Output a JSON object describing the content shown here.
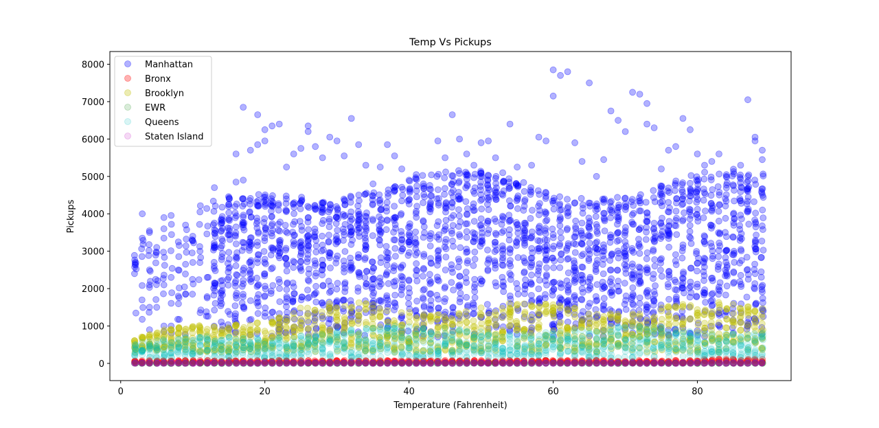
{
  "chart_data": {
    "type": "scatter",
    "title": "Temp Vs Pickups",
    "xlabel": "Temperature (Fahrenheit)",
    "ylabel": "Pickups",
    "xlim": [
      -1.5,
      93
    ],
    "ylim": [
      -460,
      8340
    ],
    "xticks": [
      0,
      20,
      40,
      60,
      80
    ],
    "yticks": [
      0,
      1000,
      2000,
      3000,
      4000,
      5000,
      6000,
      7000,
      8000
    ],
    "grid": false,
    "legend_position": "top-left",
    "x_range": [
      2,
      89
    ],
    "series": [
      {
        "name": "Manhattan",
        "color": "#0000ff",
        "alpha": 0.3,
        "points": [
          [
            2,
            2700
          ],
          [
            2,
            2650
          ],
          [
            3,
            4000
          ],
          [
            3,
            3350
          ],
          [
            4,
            3500
          ],
          [
            4,
            2500
          ],
          [
            4,
            2100
          ],
          [
            4,
            1500
          ],
          [
            4,
            900
          ],
          [
            5,
            1500
          ],
          [
            5,
            3100
          ],
          [
            6,
            3900
          ],
          [
            6,
            3600
          ],
          [
            6,
            2100
          ],
          [
            6,
            1000
          ],
          [
            7,
            2300
          ],
          [
            7,
            1000
          ],
          [
            8,
            3250
          ],
          [
            8,
            2500
          ],
          [
            8,
            1800
          ],
          [
            9,
            3700
          ],
          [
            9,
            2650
          ],
          [
            9,
            1850
          ],
          [
            10,
            3400
          ],
          [
            10,
            2700
          ],
          [
            11,
            4050
          ],
          [
            11,
            3000
          ],
          [
            12,
            2300
          ],
          [
            12,
            1750
          ],
          [
            13,
            4700
          ],
          [
            13,
            3100
          ],
          [
            13,
            2150
          ],
          [
            14,
            3550
          ],
          [
            14,
            1600
          ],
          [
            15,
            4250
          ],
          [
            15,
            2300
          ],
          [
            16,
            5600
          ],
          [
            16,
            3650
          ],
          [
            16,
            4850
          ],
          [
            17,
            6850
          ],
          [
            17,
            4900
          ],
          [
            18,
            5700
          ],
          [
            19,
            6650
          ],
          [
            19,
            5850
          ],
          [
            20,
            6250
          ],
          [
            20,
            5950
          ],
          [
            21,
            6350
          ],
          [
            22,
            6400
          ],
          [
            23,
            5250
          ],
          [
            24,
            5600
          ],
          [
            25,
            5750
          ],
          [
            26,
            6350
          ],
          [
            26,
            6200
          ],
          [
            27,
            5800
          ],
          [
            28,
            5500
          ],
          [
            29,
            6050
          ],
          [
            30,
            5950
          ],
          [
            31,
            5550
          ],
          [
            32,
            6550
          ],
          [
            33,
            5850
          ],
          [
            34,
            5300
          ],
          [
            35,
            4800
          ],
          [
            36,
            5250
          ],
          [
            37,
            5850
          ],
          [
            38,
            5550
          ],
          [
            39,
            5200
          ],
          [
            40,
            4900
          ],
          [
            41,
            5050
          ],
          [
            42,
            4800
          ],
          [
            43,
            4650
          ],
          [
            44,
            5950
          ],
          [
            45,
            5500
          ],
          [
            46,
            6650
          ],
          [
            47,
            6000
          ],
          [
            48,
            5600
          ],
          [
            49,
            5300
          ],
          [
            50,
            5900
          ],
          [
            51,
            5950
          ],
          [
            52,
            5500
          ],
          [
            53,
            5100
          ],
          [
            54,
            6400
          ],
          [
            55,
            5250
          ],
          [
            56,
            4600
          ],
          [
            57,
            5300
          ],
          [
            58,
            6050
          ],
          [
            59,
            5950
          ],
          [
            60,
            7850
          ],
          [
            60,
            7150
          ],
          [
            61,
            7700
          ],
          [
            62,
            7800
          ],
          [
            63,
            5900
          ],
          [
            64,
            5400
          ],
          [
            65,
            7500
          ],
          [
            66,
            5000
          ],
          [
            67,
            5450
          ],
          [
            68,
            6750
          ],
          [
            69,
            6500
          ],
          [
            70,
            6200
          ],
          [
            71,
            7250
          ],
          [
            72,
            7200
          ],
          [
            73,
            6950
          ],
          [
            73,
            6400
          ],
          [
            74,
            6300
          ],
          [
            75,
            5200
          ],
          [
            76,
            5700
          ],
          [
            77,
            5800
          ],
          [
            78,
            6550
          ],
          [
            79,
            6250
          ],
          [
            80,
            5600
          ],
          [
            81,
            5300
          ],
          [
            82,
            5400
          ],
          [
            83,
            5600
          ],
          [
            84,
            5000
          ],
          [
            85,
            4750
          ],
          [
            86,
            5300
          ],
          [
            87,
            7050
          ],
          [
            88,
            6050
          ],
          [
            88,
            5950
          ],
          [
            89,
            5700
          ],
          [
            89,
            5450
          ]
        ]
      },
      {
        "name": "Bronx",
        "color": "#ff0000",
        "alpha": 0.3,
        "base": [
          20,
          80
        ]
      },
      {
        "name": "Brooklyn",
        "color": "#bfbf00",
        "alpha": 0.3,
        "base": [
          300,
          1500
        ]
      },
      {
        "name": "EWR",
        "color": "#008000",
        "alpha": 0.15,
        "base": [
          0,
          10
        ]
      },
      {
        "name": "Queens",
        "color": "#00bfbf",
        "alpha": 0.15,
        "base": [
          150,
          900
        ]
      },
      {
        "name": "Staten Island",
        "color": "#bf00bf",
        "alpha": 0.15,
        "base": [
          0,
          20
        ]
      }
    ]
  }
}
